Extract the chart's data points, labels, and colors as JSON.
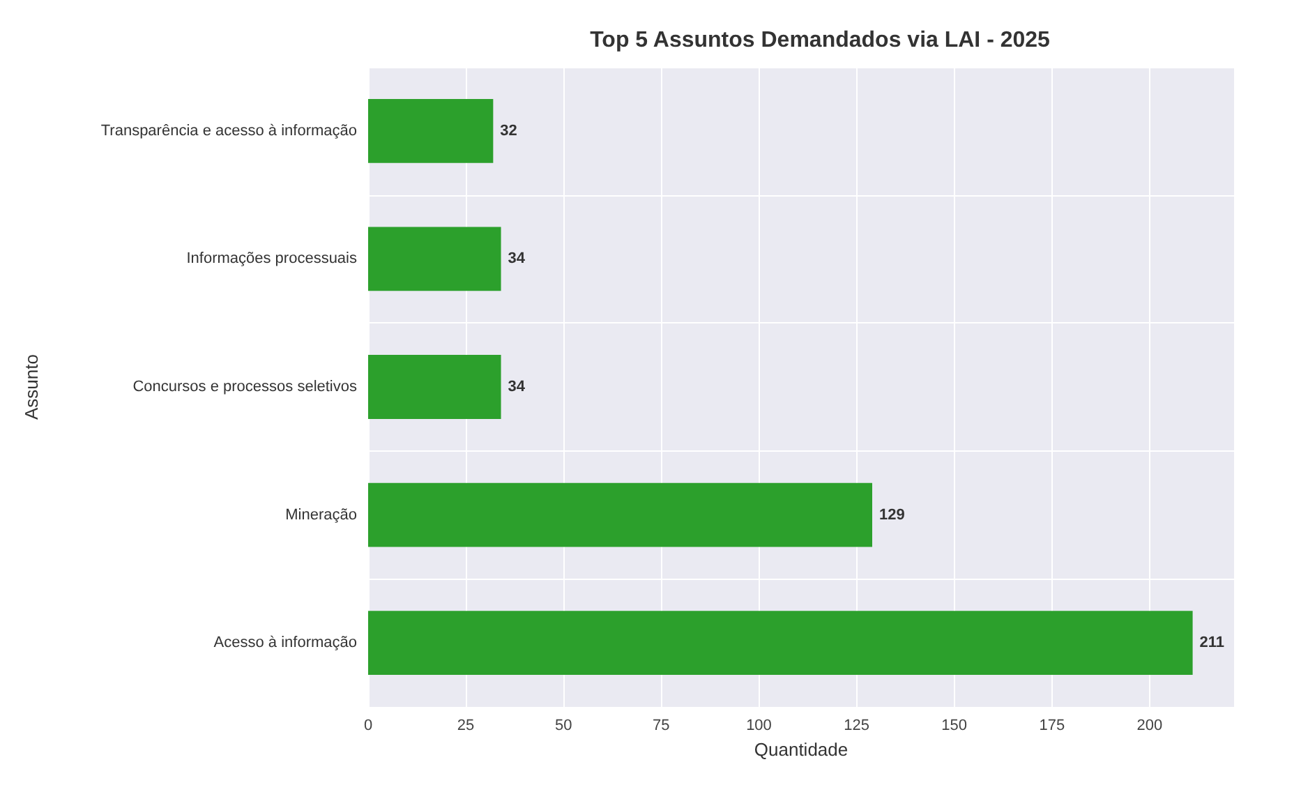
{
  "chart_data": {
    "type": "bar",
    "orientation": "horizontal",
    "title": "Top 5 Assuntos Demandados via LAI - 2025",
    "xlabel": "Quantidade",
    "ylabel": "Assunto",
    "categories": [
      "Transparência e acesso à informação",
      "Informações processuais",
      "Concursos e processos seletivos",
      "Mineração",
      "Acesso à informação"
    ],
    "values": [
      32,
      34,
      34,
      129,
      211
    ],
    "color": "#2ca02c",
    "data_labels": true,
    "xlim": [
      0,
      221.6
    ],
    "xticks": [
      0,
      25,
      50,
      75,
      100,
      125,
      150,
      175,
      200
    ],
    "grid": true
  }
}
